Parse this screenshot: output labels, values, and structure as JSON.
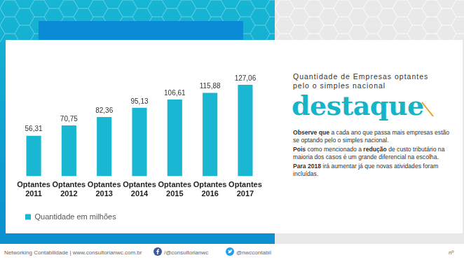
{
  "chart_data": {
    "type": "bar",
    "categories": [
      [
        "Optantes",
        "2011"
      ],
      [
        "Optantes",
        "2012"
      ],
      [
        "Optantes",
        "2013"
      ],
      [
        "Optantes",
        "2014"
      ],
      [
        "Optantes",
        "2015"
      ],
      [
        "Optantes",
        "2016"
      ],
      [
        "Optantes",
        "2017"
      ]
    ],
    "series": [
      {
        "name": "Quantidade em milhões",
        "color": "#1ab7d2",
        "values": [
          56.31,
          70.75,
          82.36,
          95.13,
          106.61,
          115.88,
          127.06
        ],
        "value_labels": [
          "56,31",
          "70,75",
          "82,36",
          "95,13",
          "106,61",
          "115,88",
          "127,06"
        ]
      }
    ],
    "ylim": [
      0,
      130
    ],
    "grid": false,
    "tick_labels": "x",
    "data_labels": true,
    "legend": "bottom"
  },
  "panel": {
    "heading_lines": [
      "Quantidade de Empresas optantes",
      "pelo o simples nacional"
    ],
    "highlight": "destaque",
    "paragraphs": [
      [
        {
          "text": "Observe que",
          "bold": true
        },
        {
          "text": " a cada ano que passa mais empresas estão se optando pelo o simples nacional.",
          "bold": false
        }
      ],
      [
        {
          "text": "Pois",
          "bold": true
        },
        {
          "text": " como mencionado a ",
          "bold": false
        },
        {
          "text": "redução",
          "bold": true
        },
        {
          "text": " de custo tributário na maioria dos casos é um grande diferencial na escolha.",
          "bold": false
        }
      ],
      [
        {
          "text": "Para 2018",
          "bold": true
        },
        {
          "text": " irá aumentar já que novas atividades foram incluídas.",
          "bold": false
        }
      ]
    ]
  },
  "footer": {
    "site": "Networking Contabilidade | www.consultorianwc.com.br",
    "facebook": "/@consultorianwc",
    "twitter": "@nwccontabil",
    "page": "nº"
  }
}
